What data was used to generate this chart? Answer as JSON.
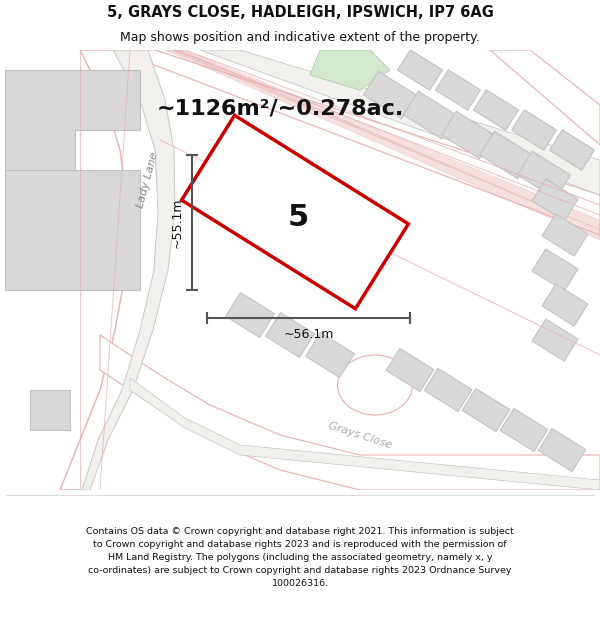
{
  "title": "5, GRAYS CLOSE, HADLEIGH, IPSWICH, IP7 6AG",
  "subtitle": "Map shows position and indicative extent of the property.",
  "area_text": "~1126m²/~0.278ac.",
  "label_number": "5",
  "dim_width": "~56.1m",
  "dim_height": "~55.1m",
  "road_label_lady": "Lady Lane",
  "road_label_grays": "Grays Close",
  "footnote_lines": [
    "Contains OS data © Crown copyright and database right 2021. This information is subject",
    "to Crown copyright and database rights 2023 and is reproduced with the permission of",
    "HM Land Registry. The polygons (including the associated geometry, namely x, y",
    "co-ordinates) are subject to Crown copyright and database rights 2023 Ordnance Survey",
    "100026316."
  ],
  "map_bg": "#f2f0ed",
  "road_fill": "#ffffff",
  "road_pink": "#e8b0b0",
  "road_grey": "#c8c8c8",
  "road_pink_dark": "#d48080",
  "building_fill": "#d8d8d8",
  "building_stroke": "#c0c0c0",
  "green_fill": "#d4e8d0",
  "green_stroke": "#b0ccb0",
  "plot_fill": "#ffffff",
  "plot_edge": "#cc0000",
  "dim_color": "#555555",
  "text_color": "#111111",
  "white": "#ffffff",
  "title_fontsize": 10.5,
  "subtitle_fontsize": 9,
  "area_fontsize": 16,
  "label_fontsize": 22,
  "dim_fontsize": 9,
  "road_label_fontsize": 8,
  "foot_fontsize": 6.8
}
